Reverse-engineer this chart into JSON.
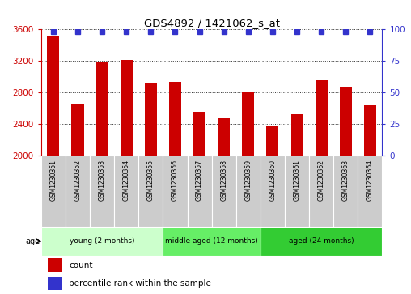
{
  "title": "GDS4892 / 1421062_s_at",
  "samples": [
    "GSM1230351",
    "GSM1230352",
    "GSM1230353",
    "GSM1230354",
    "GSM1230355",
    "GSM1230356",
    "GSM1230357",
    "GSM1230358",
    "GSM1230359",
    "GSM1230360",
    "GSM1230361",
    "GSM1230362",
    "GSM1230363",
    "GSM1230364"
  ],
  "counts": [
    3520,
    2650,
    3190,
    3210,
    2920,
    2940,
    2560,
    2480,
    2800,
    2380,
    2530,
    2960,
    2870,
    2640
  ],
  "ylim_left": [
    2000,
    3600
  ],
  "ylim_right": [
    0,
    100
  ],
  "yticks_left": [
    2000,
    2400,
    2800,
    3200,
    3600
  ],
  "yticks_right": [
    0,
    25,
    50,
    75,
    100
  ],
  "bar_color": "#cc0000",
  "dot_color": "#3333cc",
  "groups": [
    {
      "label": "young (2 months)",
      "start": 0,
      "end": 4,
      "color": "#ccffcc"
    },
    {
      "label": "middle aged (12 months)",
      "start": 5,
      "end": 8,
      "color": "#66ee66"
    },
    {
      "label": "aged (24 months)",
      "start": 9,
      "end": 13,
      "color": "#33cc33"
    }
  ],
  "left_axis_color": "#cc0000",
  "right_axis_color": "#3333cc",
  "background_color": "#ffffff",
  "sample_bg_color": "#cccccc",
  "bar_width": 0.5
}
